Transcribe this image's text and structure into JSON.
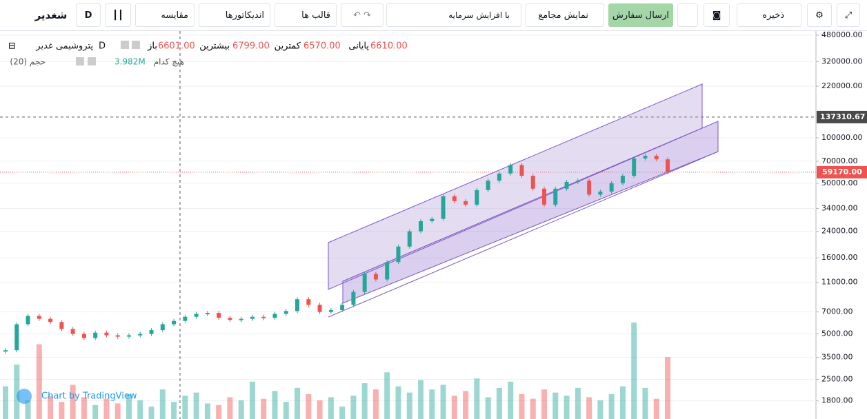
{
  "toolbar": {
    "symbol": "شغدیر",
    "interval": "D",
    "compare": "مقایسه",
    "indicators": "اندیکاتورها",
    "templates": "قالب ها",
    "adjustment": "با افزایش سرمایه",
    "show_meetings": "نمایش مجامع",
    "send_order": "ارسال سفارش",
    "save": "ذخیره"
  },
  "legend": {
    "name": "پتروشیمی غدیر",
    "interval": "D",
    "open_label": "باز",
    "open": "6601.00",
    "high_label": "بیشترین",
    "high": "6799.00",
    "low_label": "کمترین",
    "low": "6570.00",
    "close_label": "پایانی",
    "close": "6610.00",
    "volume_name": "حجم (20)",
    "volume_value": "3.982M",
    "volume_ma": "هیچ کدام"
  },
  "watermark": "Chart by TradingView",
  "chart": {
    "log_scale": true,
    "ylim": [
      1500,
      540000
    ],
    "yticks": [
      {
        "value": 480000,
        "label": "480000.00"
      },
      {
        "value": 320000,
        "label": "320000.00"
      },
      {
        "value": 220000,
        "label": "220000.00"
      },
      {
        "value": 100000,
        "label": "100000.00"
      },
      {
        "value": 70000,
        "label": "70000.00"
      },
      {
        "value": 50000,
        "label": "50000.00"
      },
      {
        "value": 34000,
        "label": "34000.00"
      },
      {
        "value": 24000,
        "label": "24000.00"
      },
      {
        "value": 16000,
        "label": "16000.00"
      },
      {
        "value": 11000,
        "label": "11000.00"
      },
      {
        "value": 7000,
        "label": "7000.00"
      },
      {
        "value": 5000,
        "label": "5000.00"
      },
      {
        "value": 3500,
        "label": "3500.00"
      },
      {
        "value": 2500,
        "label": "2500.00"
      },
      {
        "value": 1800,
        "label": "1800.00"
      }
    ],
    "crosshair": {
      "value": 137310.67,
      "label": "137310.67"
    },
    "last_price": {
      "value": 59170,
      "label": "59170.00"
    },
    "up_color": "#26a69a",
    "down_color": "#ef5350",
    "values": [
      3900,
      5800,
      6600,
      6300,
      6000,
      5400,
      5000,
      4700,
      5100,
      4900,
      4800,
      4900,
      5000,
      5300,
      5800,
      6100,
      6500,
      6800,
      6900,
      6400,
      6200,
      6300,
      6500,
      6400,
      6800,
      7100,
      8500,
      7800,
      7000,
      7200,
      7800,
      9500,
      12500,
      11500,
      15000,
      19000,
      24000,
      28000,
      29000,
      41000,
      38000,
      36000,
      45000,
      52000,
      58000,
      66000,
      56000,
      46000,
      36000,
      46000,
      51000,
      52000,
      42000,
      44000,
      50000,
      56000,
      73000,
      76000,
      72000,
      59170
    ],
    "volume": [
      2.1,
      3.5,
      1.2,
      4.8,
      1.5,
      1.1,
      2.2,
      1.4,
      0.9,
      1.3,
      1.0,
      1.6,
      1.2,
      0.8,
      1.9,
      1.1,
      1.5,
      1.7,
      1.0,
      0.9,
      1.4,
      1.2,
      2.4,
      1.3,
      1.8,
      1.1,
      2.0,
      1.6,
      1.2,
      1.4,
      0.8,
      1.5,
      2.3,
      1.9,
      3.0,
      2.1,
      1.7,
      2.5,
      1.9,
      2.2,
      1.5,
      1.8,
      2.6,
      1.4,
      2.0,
      2.4,
      1.6,
      1.3,
      1.9,
      1.7,
      1.5,
      2.0,
      1.4,
      1.2,
      1.6,
      2.1,
      6.2,
      2.0,
      1.3,
      3.982
    ]
  }
}
